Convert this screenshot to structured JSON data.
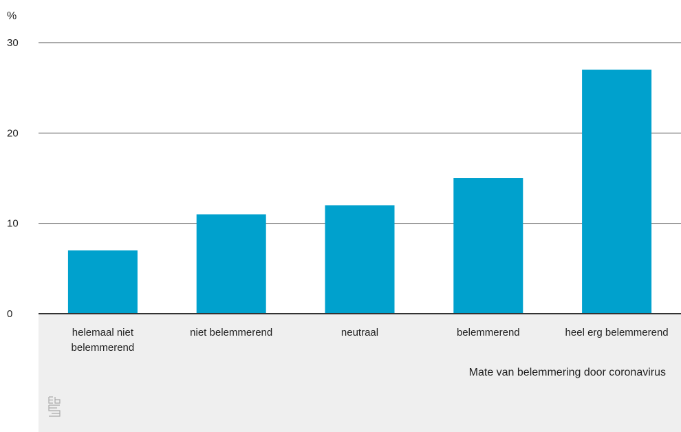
{
  "chart_data": {
    "type": "bar",
    "ylabel": "%",
    "xlabel": "Mate van belemmering door coronavirus",
    "categories": [
      [
        "helemaal niet",
        "belemmerend"
      ],
      [
        "niet belemmerend"
      ],
      [
        "neutraal"
      ],
      [
        "belemmerend"
      ],
      [
        "heel erg belemmerend"
      ]
    ],
    "values": [
      7,
      11,
      12,
      15,
      27
    ],
    "ylim": [
      0,
      30
    ],
    "yticks": [
      0,
      10,
      20,
      30
    ],
    "grid": true,
    "colors": {
      "bar": "#00a1cd",
      "grid": "#555555",
      "footer": "#efefef",
      "axis": "#333333"
    }
  },
  "logo": {
    "icon": "cbs-logo-icon",
    "text": "cbs"
  }
}
